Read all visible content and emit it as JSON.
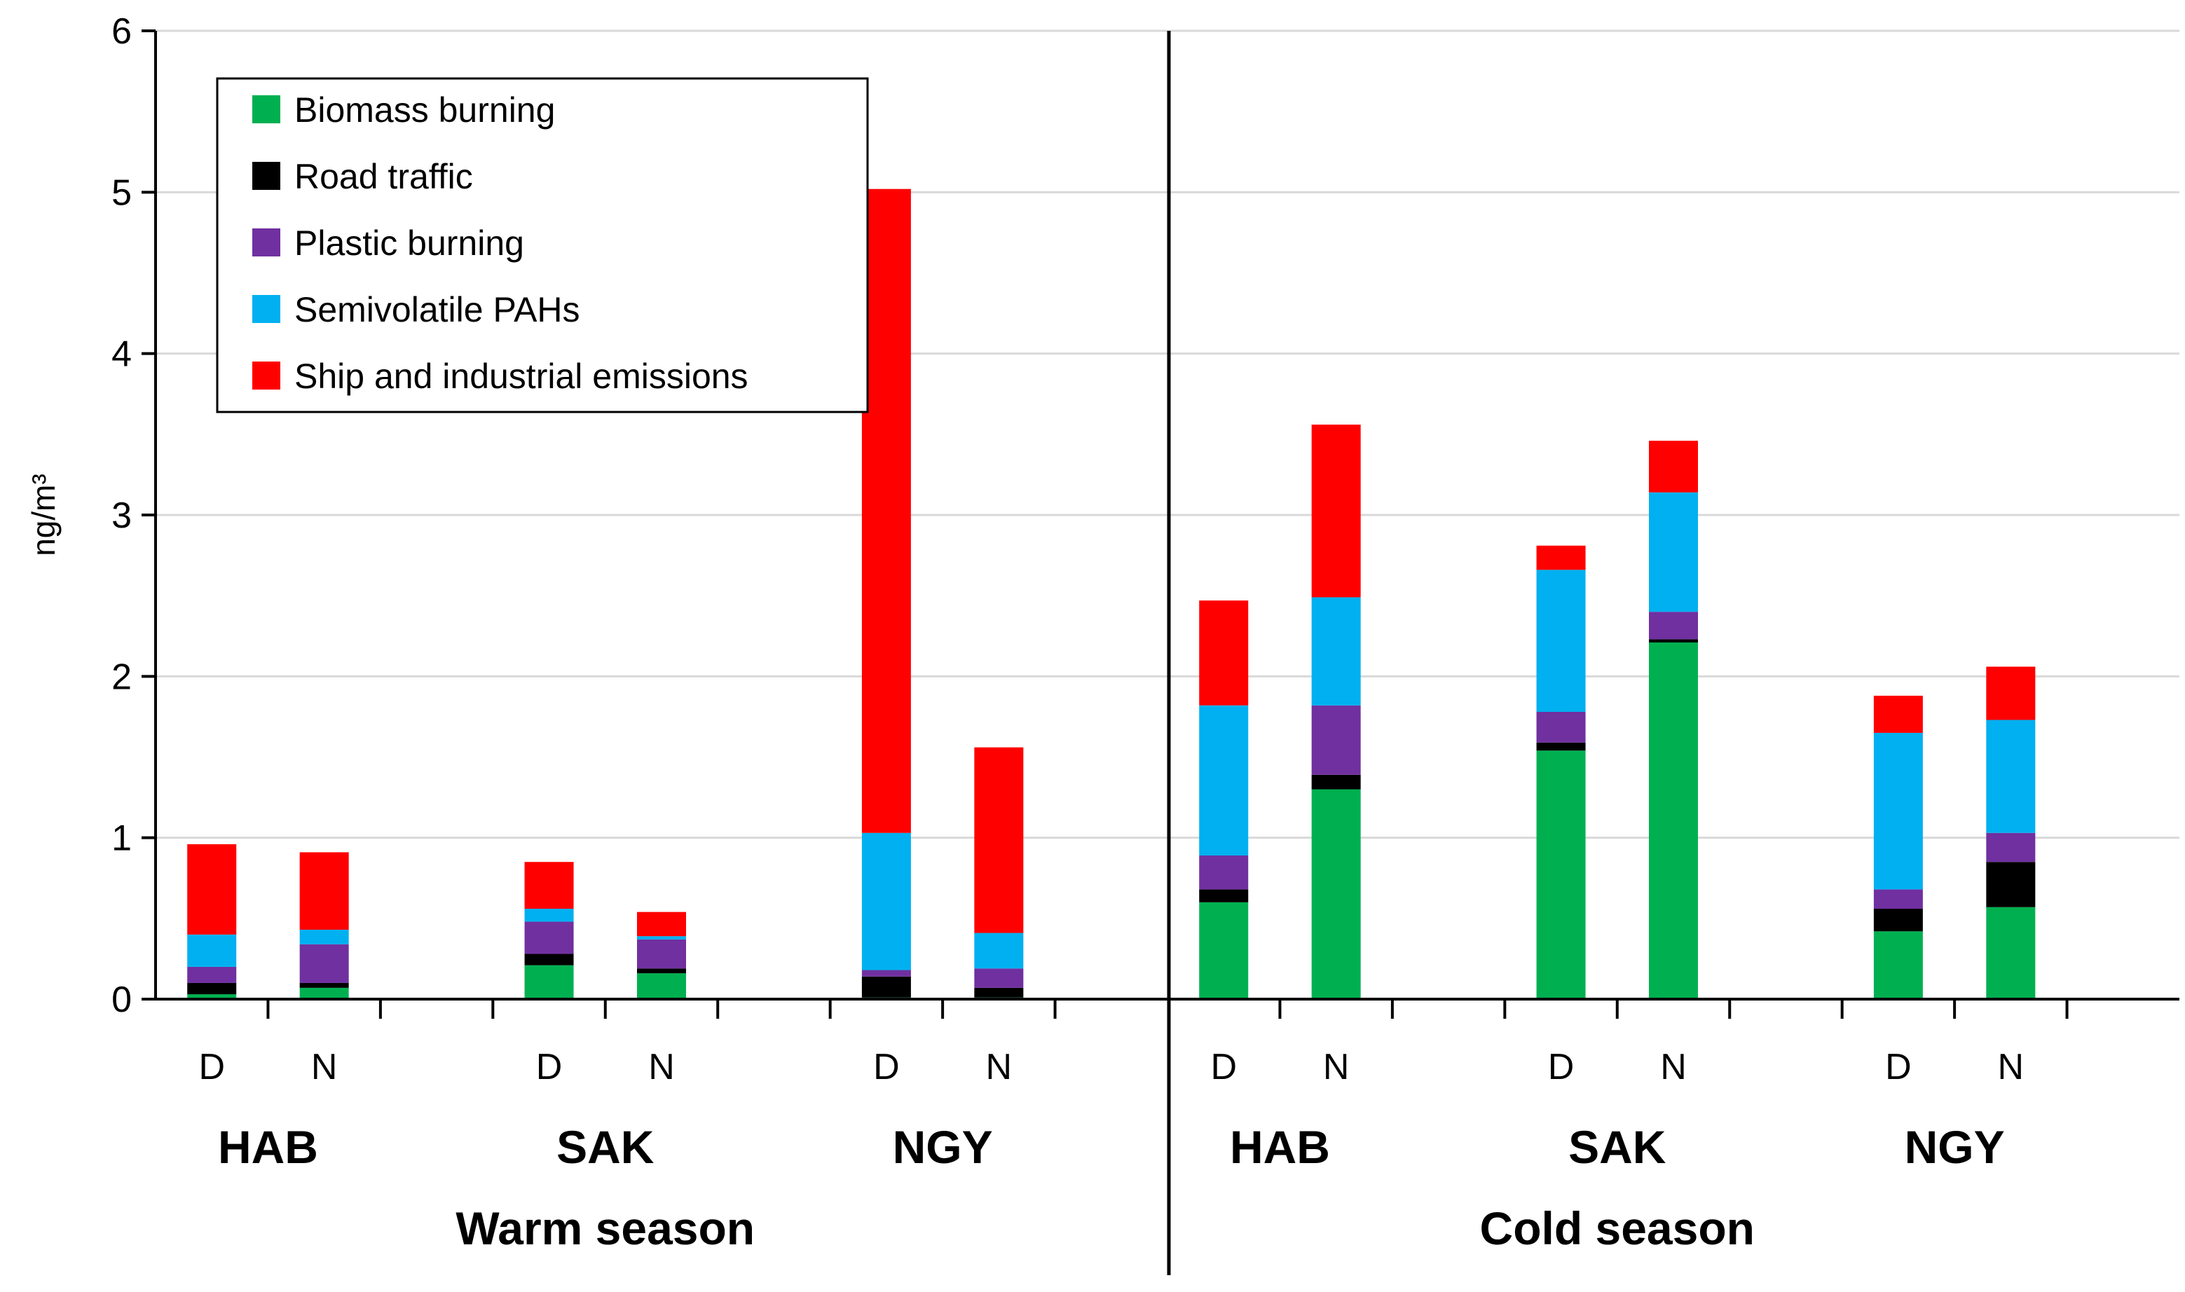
{
  "chart_data": {
    "type": "bar",
    "stacked": true,
    "ylabel": "ng/m³",
    "ylim": [
      0,
      6
    ],
    "yticks": [
      "0",
      "1",
      "2",
      "3",
      "4",
      "5",
      "6"
    ],
    "grid": true,
    "legend_position": "top-left",
    "seasons": [
      {
        "label": "Warm season",
        "sites": [
          "HAB",
          "SAK",
          "NGY"
        ]
      },
      {
        "label": "Cold season",
        "sites": [
          "HAB",
          "SAK",
          "NGY"
        ]
      }
    ],
    "categories": [
      "Warm HAB D",
      "Warm HAB N",
      "Warm SAK D",
      "Warm SAK N",
      "Warm NGY D",
      "Warm NGY N",
      "Cold HAB D",
      "Cold HAB N",
      "Cold SAK D",
      "Cold SAK N",
      "Cold NGY D",
      "Cold NGY N"
    ],
    "dn_labels": [
      "D",
      "N",
      "D",
      "N",
      "D",
      "N",
      "D",
      "N",
      "D",
      "N",
      "D",
      "N"
    ],
    "series": [
      {
        "name": "Biomass burning",
        "color": "#00b050",
        "values": [
          0.03,
          0.07,
          0.21,
          0.16,
          0.01,
          0.01,
          0.6,
          1.3,
          1.54,
          2.21,
          0.42,
          0.57
        ]
      },
      {
        "name": "Road traffic",
        "color": "#000000",
        "values": [
          0.07,
          0.03,
          0.07,
          0.03,
          0.13,
          0.06,
          0.08,
          0.09,
          0.05,
          0.02,
          0.14,
          0.28
        ]
      },
      {
        "name": "Plastic burning",
        "color": "#7030a0",
        "values": [
          0.1,
          0.24,
          0.2,
          0.18,
          0.04,
          0.12,
          0.21,
          0.43,
          0.19,
          0.17,
          0.12,
          0.18
        ]
      },
      {
        "name": "Semivolatile PAHs",
        "color": "#00b0f0",
        "values": [
          0.2,
          0.09,
          0.08,
          0.02,
          0.85,
          0.22,
          0.93,
          0.67,
          0.88,
          0.74,
          0.97,
          0.7
        ]
      },
      {
        "name": "Ship and industrial emissions",
        "color": "#ff0000",
        "values": [
          0.56,
          0.48,
          0.29,
          0.15,
          3.99,
          1.15,
          0.65,
          1.07,
          0.15,
          0.32,
          0.23,
          0.33
        ]
      }
    ]
  }
}
